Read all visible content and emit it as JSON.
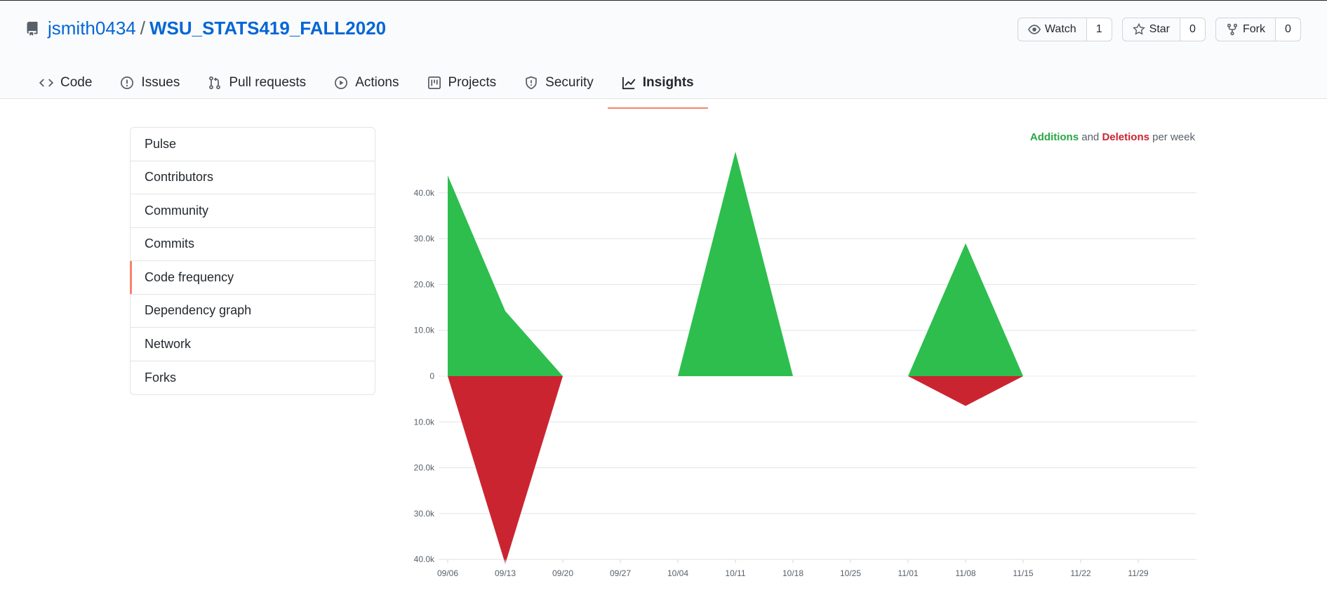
{
  "repo": {
    "owner": "jsmith0434",
    "separator": "/",
    "name": "WSU_STATS419_FALL2020",
    "icon": "repo-icon"
  },
  "actions": [
    {
      "label": "Watch",
      "count": "1",
      "icon": "eye-icon"
    },
    {
      "label": "Star",
      "count": "0",
      "icon": "star-icon"
    },
    {
      "label": "Fork",
      "count": "0",
      "icon": "fork-icon"
    }
  ],
  "tabs": [
    {
      "label": "Code",
      "icon": "code-icon"
    },
    {
      "label": "Issues",
      "icon": "issue-icon"
    },
    {
      "label": "Pull requests",
      "icon": "pull-request-icon"
    },
    {
      "label": "Actions",
      "icon": "play-icon"
    },
    {
      "label": "Projects",
      "icon": "project-icon"
    },
    {
      "label": "Security",
      "icon": "shield-icon"
    },
    {
      "label": "Insights",
      "icon": "graph-icon",
      "active": true
    }
  ],
  "sidebar": {
    "items": [
      {
        "label": "Pulse"
      },
      {
        "label": "Contributors"
      },
      {
        "label": "Community"
      },
      {
        "label": "Commits"
      },
      {
        "label": "Code frequency",
        "active": true
      },
      {
        "label": "Dependency graph"
      },
      {
        "label": "Network"
      },
      {
        "label": "Forks"
      }
    ]
  },
  "legend": {
    "additions": "Additions",
    "and": "and",
    "deletions": "Deletions",
    "suffix": "per week"
  },
  "colors": {
    "additions": "#2dbe4e",
    "deletions": "#cb2431",
    "accent": "#f9826c",
    "link": "#0366d6"
  },
  "chart_data": {
    "type": "area",
    "x": [
      "09/06",
      "09/13",
      "09/20",
      "09/27",
      "10/04",
      "10/11",
      "10/18",
      "10/25",
      "11/01",
      "11/08",
      "11/15",
      "11/22",
      "11/29"
    ],
    "series": [
      {
        "name": "Additions",
        "values": [
          43800,
          14200,
          0,
          0,
          0,
          49000,
          0,
          0,
          0,
          29000,
          0,
          0,
          0
        ]
      },
      {
        "name": "Deletions",
        "values": [
          0,
          -41000,
          0,
          0,
          0,
          0,
          0,
          0,
          0,
          -6500,
          0,
          0,
          0
        ]
      }
    ],
    "y_ticks": [
      {
        "value": 40000,
        "label": "40.0k"
      },
      {
        "value": 30000,
        "label": "30.0k"
      },
      {
        "value": 20000,
        "label": "20.0k"
      },
      {
        "value": 10000,
        "label": "10.0k"
      },
      {
        "value": 0,
        "label": "0"
      },
      {
        "value": -10000,
        "label": "10.0k"
      },
      {
        "value": -20000,
        "label": "20.0k"
      },
      {
        "value": -30000,
        "label": "30.0k"
      },
      {
        "value": -40000,
        "label": "40.0k"
      }
    ],
    "ylim": [
      -40000,
      40000
    ],
    "grid": true,
    "legend_position": "top-right"
  }
}
